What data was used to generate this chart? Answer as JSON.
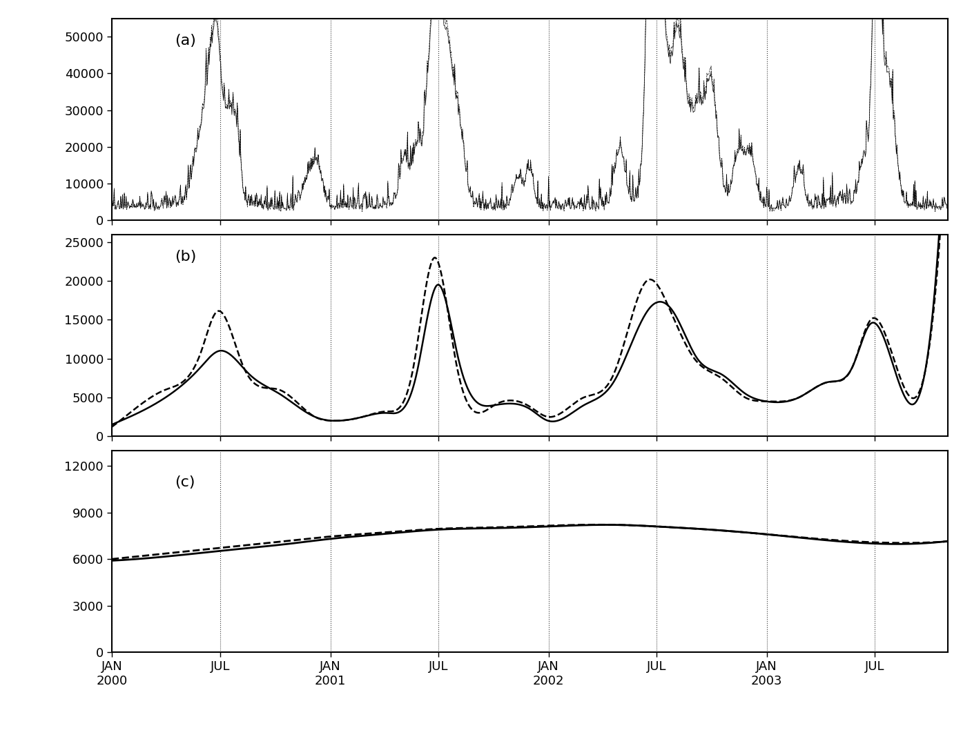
{
  "panel_a_label": "(a)",
  "panel_b_label": "(b)",
  "panel_c_label": "(c)",
  "panel_a_yticks": [
    0,
    10000,
    20000,
    30000,
    40000,
    50000
  ],
  "panel_b_yticks": [
    0,
    5000,
    10000,
    15000,
    20000,
    25000
  ],
  "panel_c_yticks": [
    0,
    3000,
    6000,
    9000,
    12000
  ],
  "panel_a_ylim": [
    0,
    55000
  ],
  "panel_b_ylim": [
    0,
    26000
  ],
  "panel_c_ylim": [
    0,
    13000
  ],
  "background_color": "#ffffff",
  "line_color": "#000000",
  "dashed_color": "#000000",
  "label_fontsize": 16,
  "tick_fontsize": 13
}
